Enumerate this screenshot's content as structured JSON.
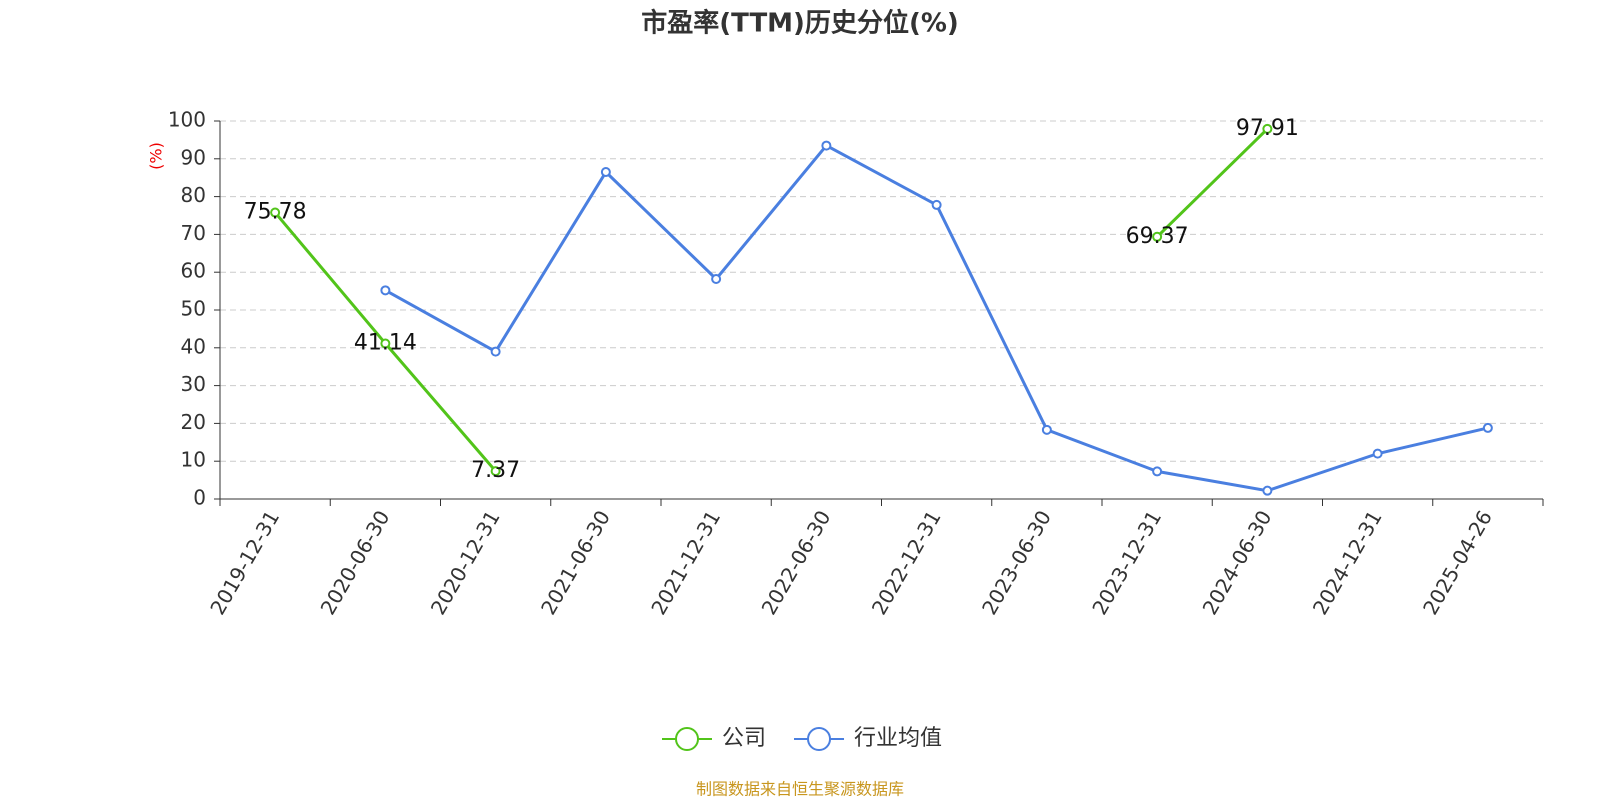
{
  "chart_data": {
    "type": "line",
    "title": "市盈率(TTM)历史分位(%)",
    "y_label": "(%)",
    "categories": [
      "2019-12-31",
      "2020-06-30",
      "2020-12-31",
      "2021-06-30",
      "2021-12-31",
      "2022-06-30",
      "2022-12-31",
      "2023-06-30",
      "2023-12-31",
      "2024-06-30",
      "2024-12-31",
      "2025-04-26"
    ],
    "series": [
      {
        "name": "公司",
        "color": "#52c41a",
        "values": [
          75.78,
          41.14,
          7.37,
          null,
          null,
          null,
          null,
          null,
          69.37,
          97.91,
          null,
          null
        ],
        "show_labels": true
      },
      {
        "name": "行业均值",
        "color": "#4a7fe0",
        "values": [
          null,
          55.2,
          39.0,
          86.5,
          58.2,
          93.5,
          77.8,
          18.3,
          7.3,
          2.2,
          12.0,
          18.8
        ],
        "show_labels": false
      }
    ],
    "ylim": [
      0,
      100
    ],
    "yticks": [
      0,
      10,
      20,
      30,
      40,
      50,
      60,
      70,
      80,
      90,
      100
    ],
    "grid": true,
    "source": "制图数据来自恒生聚源数据库"
  }
}
